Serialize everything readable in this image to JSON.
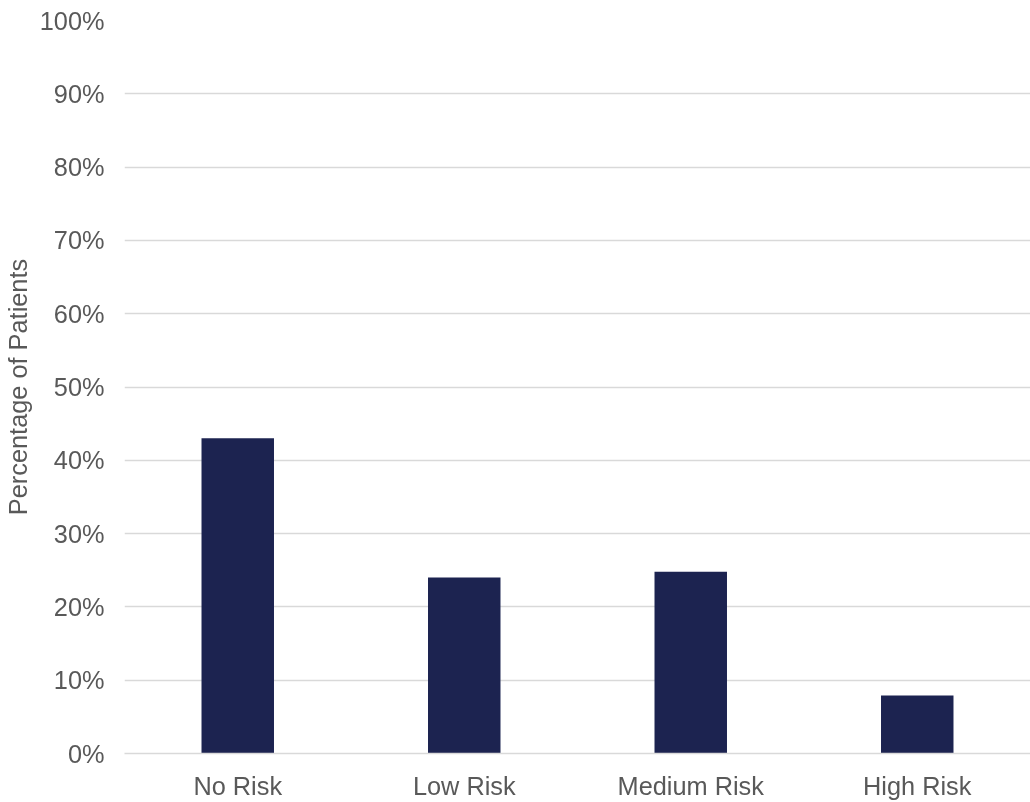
{
  "chart_data": {
    "type": "bar",
    "ylabel": "Percentage of Patients",
    "categories": [
      "No Risk",
      "Low Risk",
      "Medium Risk",
      "High Risk"
    ],
    "values": [
      43.0,
      24.0,
      24.8,
      7.9
    ],
    "color": "#1c2350",
    "ylim": [
      0,
      100
    ],
    "yticks": [
      {
        "value": 0,
        "label": "0%"
      },
      {
        "value": 10,
        "label": "10%"
      },
      {
        "value": 20,
        "label": "20%"
      },
      {
        "value": 30,
        "label": "30%"
      },
      {
        "value": 40,
        "label": "40%"
      },
      {
        "value": 50,
        "label": "50%"
      },
      {
        "value": 60,
        "label": "60%"
      },
      {
        "value": 70,
        "label": "70%"
      },
      {
        "value": 80,
        "label": "80%"
      },
      {
        "value": 90,
        "label": "90%"
      },
      {
        "value": 100,
        "label": "100%"
      }
    ],
    "grid": "y"
  }
}
